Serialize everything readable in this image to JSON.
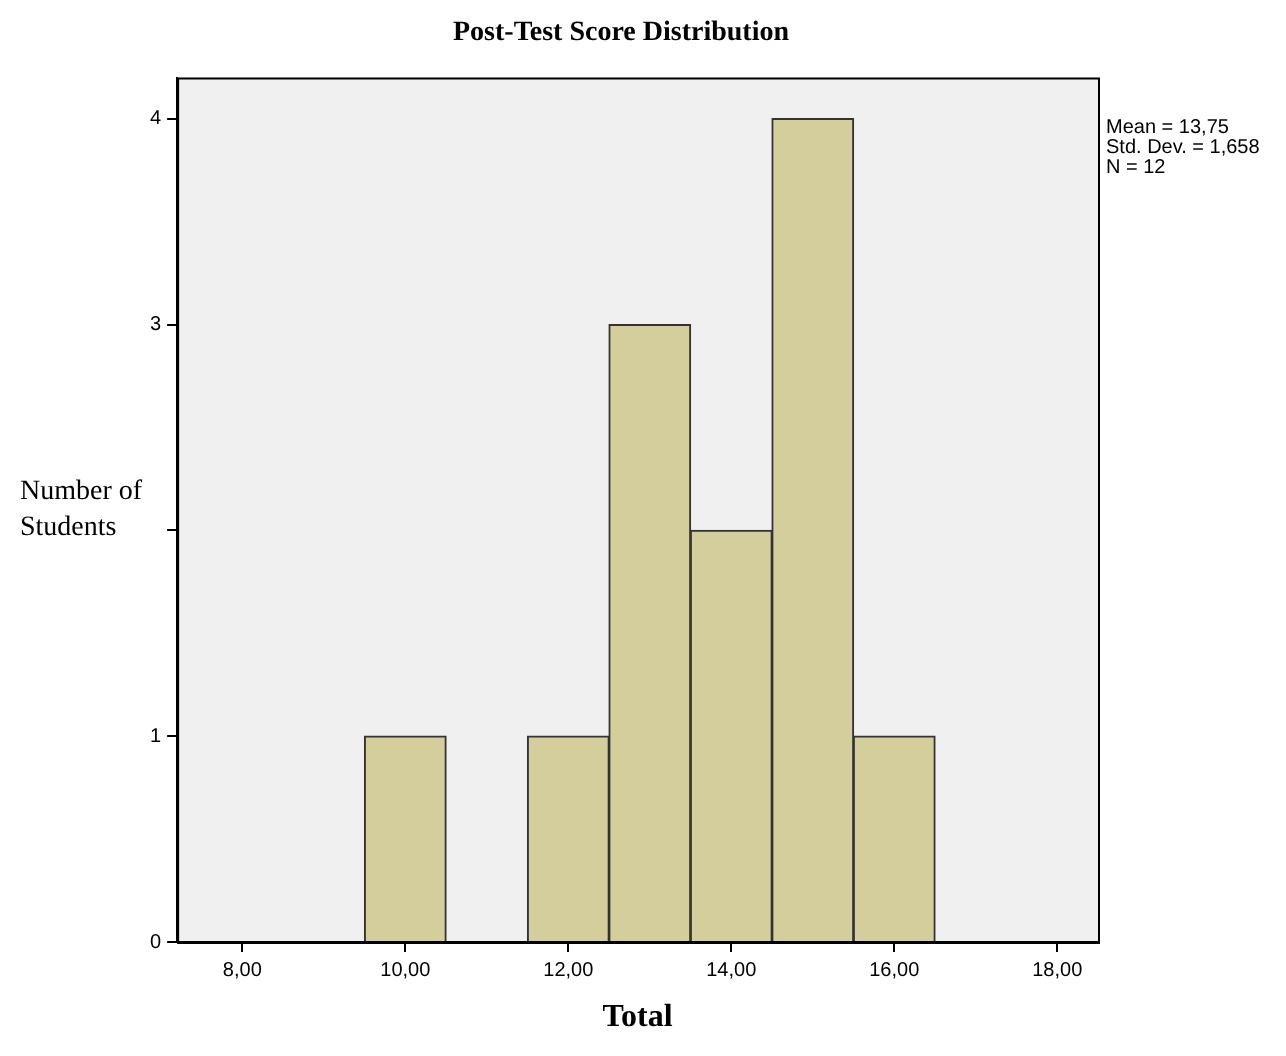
{
  "chart_data": {
    "type": "histogram",
    "title": "Post-Test Score Distribution",
    "xlabel": "Total",
    "ylabel": "Number of Students",
    "bins": [
      9.5,
      10.5,
      11.5,
      12.5,
      13.5,
      14.5,
      15.5,
      16.5
    ],
    "values": [
      1,
      0,
      1,
      3,
      2,
      4,
      1
    ],
    "color": "#d3ce9b",
    "xlim": [
      7.2,
      18.5
    ],
    "xticks": [
      {
        "value": 8,
        "label": "8,00"
      },
      {
        "value": 10,
        "label": "10,00"
      },
      {
        "value": 12,
        "label": "12,00"
      },
      {
        "value": 14,
        "label": "14,00"
      },
      {
        "value": 16,
        "label": "16,00"
      },
      {
        "value": 18,
        "label": "18,00"
      }
    ],
    "ylim": [
      0,
      4.2
    ],
    "yticks": [
      0,
      1,
      {
        "value": 2,
        "label": null
      },
      3,
      4
    ],
    "annotations": [
      "Mean = 13,75",
      "Std. Dev. = 1,658",
      "N = 12"
    ],
    "grid": false,
    "legend": false
  }
}
